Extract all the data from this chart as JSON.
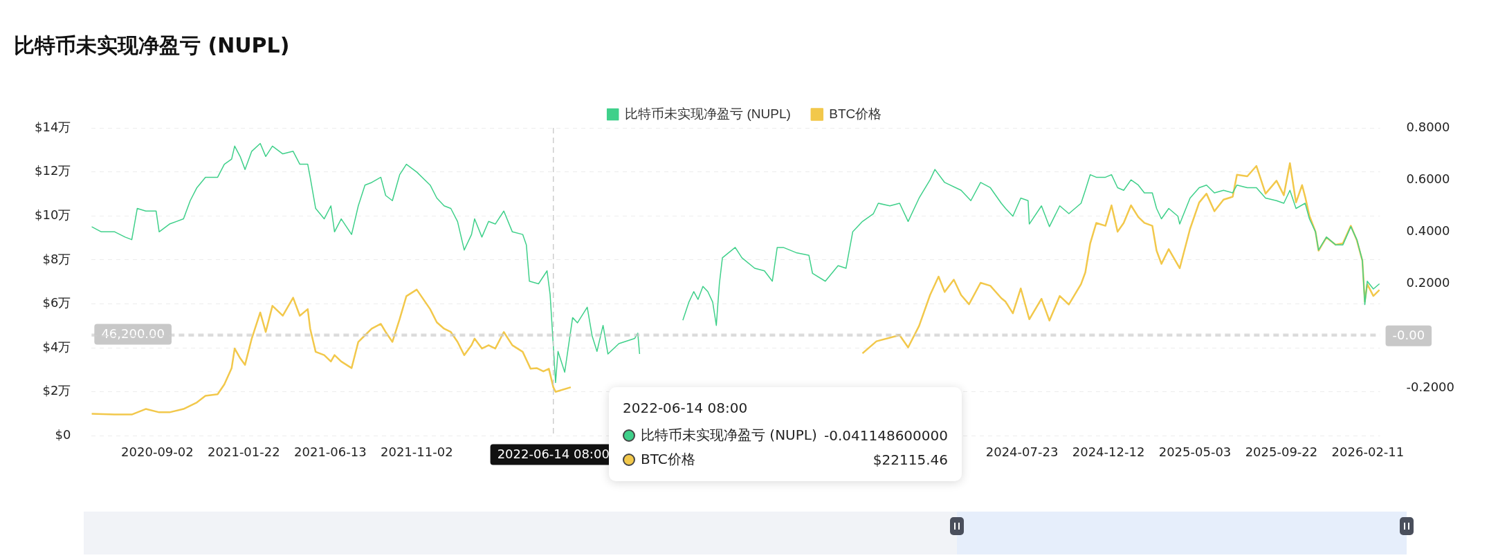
{
  "chart_data": {
    "type": "line",
    "title": "比特币未实现净盈亏 (NUPL)",
    "legend": "top",
    "grid": "y",
    "marker": "none",
    "line_style": "solid",
    "xlim": [
      "2020-05-17",
      "2026-03-03"
    ],
    "xticks": [
      "2020-09-02",
      "2021-01-22",
      "2021-06-13",
      "2021-11-02",
      "2024-07-23",
      "2024-12-12",
      "2025-05-03",
      "2025-09-22",
      "2026-02-11"
    ],
    "ylim": [
      0,
      14
    ],
    "yticks": [
      {
        "value": 0,
        "label": "$0"
      },
      {
        "value": 2,
        "label": "$2万"
      },
      {
        "value": 4,
        "label": "$4万"
      },
      {
        "value": 6,
        "label": "$6万"
      },
      {
        "value": 8,
        "label": "$8万"
      },
      {
        "value": 10,
        "label": "$10万"
      },
      {
        "value": 12,
        "label": "$12万"
      },
      {
        "value": 14,
        "label": "$14万"
      }
    ],
    "y2lim": [
      -0.385,
      0.8
    ],
    "y2ticks": [
      {
        "value": -0.2,
        "label": "-0.2000"
      },
      {
        "value": 0.2,
        "label": "0.2000"
      },
      {
        "value": 0.4,
        "label": "0.4000"
      },
      {
        "value": 0.6,
        "label": "0.6000"
      },
      {
        "value": 0.8,
        "label": "0.8000"
      }
    ],
    "ref_lines": [
      {
        "axis": "x",
        "value": "2022-06-14T08:00",
        "label": "2022-06-14 08:00",
        "color": "#cccccc",
        "line_style": "dashed"
      },
      {
        "axis": "y",
        "value": 4.62,
        "color": "#cccccc",
        "line_style": "dashed"
      },
      {
        "axis": "y2",
        "value": 0,
        "label": "-0.00",
        "color": "#cccccc",
        "line_style": "dashed"
      }
    ],
    "annotations": [
      "2022-06-14 08:00",
      "比特币未实现净盈亏 (NUPL)",
      "-0.041148600000",
      "BTC价格",
      "$22115.46",
      "46,200.00"
    ],
    "series": [
      {
        "name": "比特币未实现净盈亏 (NUPL)",
        "color": "#3fd08a",
        "axis": "y2",
        "x": [
          "2020-05-17",
          "2020-06-02",
          "2020-06-24",
          "2020-07-11",
          "2020-07-22",
          "2020-07-31",
          "2020-08-14",
          "2020-08-31",
          "2020-09-05",
          "2020-09-22",
          "2020-10-15",
          "2020-10-26",
          "2020-11-06",
          "2020-11-20",
          "2020-12-10",
          "2020-12-21",
          "2021-01-02",
          "2021-01-07",
          "2021-01-16",
          "2021-01-24",
          "2021-02-04",
          "2021-02-18",
          "2021-02-27",
          "2021-03-10",
          "2021-03-27",
          "2021-04-13",
          "2021-04-24",
          "2021-05-07",
          "2021-05-11",
          "2021-05-20",
          "2021-06-03",
          "2021-06-14",
          "2021-06-20",
          "2021-07-01",
          "2021-07-18",
          "2021-07-29",
          "2021-08-09",
          "2021-08-20",
          "2021-09-04",
          "2021-09-12",
          "2021-09-23",
          "2021-10-05",
          "2021-10-16",
          "2021-11-02",
          "2021-11-24",
          "2021-12-05",
          "2021-12-17",
          "2021-12-28",
          "2022-01-08",
          "2022-01-19",
          "2022-01-31",
          "2022-02-05",
          "2022-02-17",
          "2022-02-28",
          "2022-03-11",
          "2022-03-25",
          "2022-04-08",
          "2022-04-25",
          "2022-05-01",
          "2022-05-06",
          "2022-05-21",
          "2022-06-04",
          "2022-06-09",
          "2022-06-14T08:00",
          "2022-06-18",
          "2022-06-22",
          "2022-07-03",
          "2022-07-16",
          "2022-07-24",
          "2022-08-09",
          "2022-08-17",
          "2022-08-25",
          "2022-09-04",
          "2022-09-12",
          "2022-09-30",
          "2022-10-26",
          "2022-10-31",
          "2022-11-03",
          "2022-12-01",
          "2023-01-13",
          "2023-01-23",
          "2023-01-31",
          "2023-02-07",
          "2023-02-15",
          "2023-02-23",
          "2023-03-03",
          "2023-03-09",
          "2023-03-14",
          "2023-03-19",
          "2023-04-09",
          "2023-04-20",
          "2023-05-11",
          "2023-05-27",
          "2023-06-09",
          "2023-06-17",
          "2023-06-27",
          "2023-07-18",
          "2023-08-08",
          "2023-08-14",
          "2023-09-04",
          "2023-09-25",
          "2023-10-08",
          "2023-10-19",
          "2023-11-04",
          "2023-11-22",
          "2023-11-30",
          "2023-12-19",
          "2024-01-04",
          "2024-01-18",
          "2024-02-05",
          "2024-02-23",
          "2024-03-02",
          "2024-03-18",
          "2024-04-14",
          "2024-04-30",
          "2024-05-16",
          "2024-06-01",
          "2024-06-19",
          "2024-06-26",
          "2024-07-08",
          "2024-07-21",
          "2024-08-02",
          "2024-08-04",
          "2024-08-24",
          "2024-09-06",
          "2024-09-23",
          "2024-10-08",
          "2024-10-28",
          "2024-11-04",
          "2024-11-12",
          "2024-11-22",
          "2024-12-07",
          "2024-12-17",
          "2024-12-27",
          "2025-01-06",
          "2025-01-18",
          "2025-01-30",
          "2025-02-09",
          "2025-02-22",
          "2025-03-01",
          "2025-03-09",
          "2025-03-21",
          "2025-04-05",
          "2025-04-08",
          "2025-04-25",
          "2025-05-10",
          "2025-05-22",
          "2025-06-04",
          "2025-06-19",
          "2025-07-04",
          "2025-07-11",
          "2025-07-28",
          "2025-08-12",
          "2025-08-27",
          "2025-09-14",
          "2025-09-26",
          "2025-10-06",
          "2025-10-16",
          "2025-10-31",
          "2025-11-07",
          "2025-11-17",
          "2025-11-22",
          "2025-12-05",
          "2025-12-20",
          "2026-01-01",
          "2026-01-14",
          "2026-01-24",
          "2026-02-02",
          "2026-02-06",
          "2026-02-10",
          "2026-02-20",
          "2026-03-02"
        ],
        "values": [
          0.42,
          0.4,
          0.4,
          0.38,
          0.37,
          0.49,
          0.48,
          0.48,
          0.4,
          0.43,
          0.45,
          0.52,
          0.57,
          0.61,
          0.61,
          0.66,
          0.68,
          0.73,
          0.69,
          0.64,
          0.71,
          0.74,
          0.69,
          0.73,
          0.7,
          0.71,
          0.66,
          0.66,
          0.61,
          0.49,
          0.45,
          0.5,
          0.4,
          0.45,
          0.39,
          0.5,
          0.58,
          0.59,
          0.61,
          0.54,
          0.52,
          0.62,
          0.66,
          0.63,
          0.58,
          0.53,
          0.5,
          0.49,
          0.44,
          0.33,
          0.39,
          0.45,
          0.38,
          0.44,
          0.43,
          0.48,
          0.4,
          0.39,
          0.35,
          0.21,
          0.2,
          0.25,
          0.16,
          -0.04,
          -0.18,
          -0.06,
          -0.14,
          0.07,
          0.05,
          0.11,
          0.0,
          -0.06,
          0.04,
          -0.07,
          -0.03,
          -0.01,
          0.01,
          -0.07,
          null,
          0.06,
          0.13,
          0.17,
          0.14,
          0.19,
          0.17,
          0.13,
          0.04,
          0.2,
          0.3,
          0.34,
          0.3,
          0.26,
          0.25,
          0.21,
          0.34,
          0.34,
          0.32,
          0.31,
          0.24,
          0.21,
          0.27,
          0.26,
          0.4,
          0.44,
          0.47,
          0.51,
          0.5,
          0.51,
          0.44,
          0.53,
          0.6,
          0.64,
          0.59,
          0.56,
          0.52,
          0.59,
          0.57,
          0.51,
          0.49,
          0.46,
          0.53,
          0.52,
          0.43,
          0.5,
          0.42,
          0.5,
          0.47,
          0.51,
          0.56,
          0.62,
          0.61,
          0.61,
          0.62,
          0.57,
          0.56,
          0.6,
          0.58,
          0.55,
          0.55,
          0.49,
          0.45,
          0.49,
          0.46,
          0.43,
          0.53,
          0.57,
          0.58,
          0.55,
          0.56,
          0.55,
          0.58,
          0.57,
          0.57,
          0.53,
          0.52,
          0.51,
          0.56,
          0.49,
          0.51,
          0.45,
          0.4,
          0.33,
          0.38,
          0.35,
          0.35,
          0.42,
          0.37,
          0.29,
          0.12,
          0.21,
          0.18,
          0.2
        ]
      },
      {
        "name": "BTC价格",
        "color": "#f2c84b",
        "axis": "y",
        "x": [
          "2020-05-17",
          "2020-06-24",
          "2020-07-22",
          "2020-08-14",
          "2020-09-05",
          "2020-09-22",
          "2020-10-15",
          "2020-10-26",
          "2020-11-06",
          "2020-11-20",
          "2020-12-10",
          "2020-12-21",
          "2021-01-02",
          "2021-01-07",
          "2021-01-16",
          "2021-01-24",
          "2021-02-04",
          "2021-02-18",
          "2021-02-27",
          "2021-03-10",
          "2021-03-27",
          "2021-04-13",
          "2021-04-24",
          "2021-05-07",
          "2021-05-11",
          "2021-05-20",
          "2021-06-03",
          "2021-06-14",
          "2021-06-20",
          "2021-07-01",
          "2021-07-18",
          "2021-07-29",
          "2021-08-09",
          "2021-08-20",
          "2021-09-04",
          "2021-09-12",
          "2021-09-23",
          "2021-10-05",
          "2021-10-16",
          "2021-11-02",
          "2021-11-24",
          "2021-12-05",
          "2021-12-17",
          "2021-12-28",
          "2022-01-08",
          "2022-01-19",
          "2022-01-31",
          "2022-02-05",
          "2022-02-17",
          "2022-02-28",
          "2022-03-11",
          "2022-03-25",
          "2022-04-08",
          "2022-04-25",
          "2022-05-08",
          "2022-05-18",
          "2022-05-29",
          "2022-06-07",
          "2022-06-14T08:00",
          "2022-06-18",
          "2022-07-13",
          "2022-08-15",
          "2023-11-04",
          "2023-11-27",
          "2024-01-04",
          "2024-01-18",
          "2024-02-05",
          "2024-02-23",
          "2024-03-08",
          "2024-03-18",
          "2024-04-02",
          "2024-04-14",
          "2024-04-27",
          "2024-05-16",
          "2024-06-01",
          "2024-06-19",
          "2024-06-26",
          "2024-07-08",
          "2024-07-21",
          "2024-08-04",
          "2024-08-24",
          "2024-09-06",
          "2024-09-23",
          "2024-10-08",
          "2024-10-28",
          "2024-11-04",
          "2024-11-12",
          "2024-11-22",
          "2024-12-07",
          "2024-12-17",
          "2024-12-27",
          "2025-01-06",
          "2025-01-18",
          "2025-01-30",
          "2025-02-09",
          "2025-02-22",
          "2025-03-01",
          "2025-03-09",
          "2025-03-21",
          "2025-04-08",
          "2025-04-25",
          "2025-05-10",
          "2025-05-22",
          "2025-06-04",
          "2025-06-19",
          "2025-07-04",
          "2025-07-11",
          "2025-07-28",
          "2025-08-12",
          "2025-08-27",
          "2025-09-14",
          "2025-09-26",
          "2025-10-06",
          "2025-10-16",
          "2025-10-26",
          "2025-10-31",
          "2025-11-07",
          "2025-11-17",
          "2025-11-22",
          "2025-12-05",
          "2025-12-20",
          "2026-01-01",
          "2026-01-14",
          "2026-01-24",
          "2026-02-02",
          "2026-02-06",
          "2026-02-10",
          "2026-02-20",
          "2026-03-02"
        ],
        "values": [
          1.0,
          0.97,
          0.97,
          1.22,
          1.07,
          1.07,
          1.22,
          1.37,
          1.52,
          1.82,
          1.89,
          2.34,
          3.08,
          3.97,
          3.53,
          3.23,
          4.42,
          5.61,
          4.72,
          5.91,
          5.46,
          6.28,
          5.46,
          5.76,
          4.87,
          3.82,
          3.67,
          3.38,
          3.67,
          3.38,
          3.08,
          4.27,
          4.57,
          4.87,
          5.09,
          4.72,
          4.27,
          5.31,
          6.35,
          6.65,
          5.76,
          5.16,
          4.87,
          4.72,
          4.27,
          3.67,
          4.12,
          4.42,
          3.97,
          4.12,
          3.97,
          4.72,
          4.12,
          3.82,
          3.05,
          3.08,
          2.93,
          3.05,
          2.21,
          2.0,
          2.21,
          null,
          3.75,
          4.3,
          4.58,
          4.02,
          5.0,
          6.4,
          7.24,
          6.54,
          7.1,
          6.4,
          5.98,
          6.96,
          6.82,
          6.26,
          6.1,
          5.57,
          6.7,
          5.3,
          6.23,
          5.24,
          6.36,
          5.97,
          6.9,
          7.43,
          8.75,
          9.68,
          9.55,
          10.48,
          9.28,
          9.68,
          10.48,
          9.95,
          9.68,
          9.55,
          8.42,
          7.82,
          8.49,
          7.62,
          9.41,
          10.61,
          11.01,
          10.21,
          10.74,
          10.87,
          11.87,
          11.8,
          12.27,
          11.01,
          11.6,
          10.94,
          12.4,
          10.61,
          11.4,
          10.87,
          10.01,
          9.28,
          8.42,
          9.02,
          8.69,
          8.75,
          9.55,
          8.88,
          7.96,
          6.1,
          6.9,
          6.36,
          6.63
        ]
      }
    ]
  }
}
